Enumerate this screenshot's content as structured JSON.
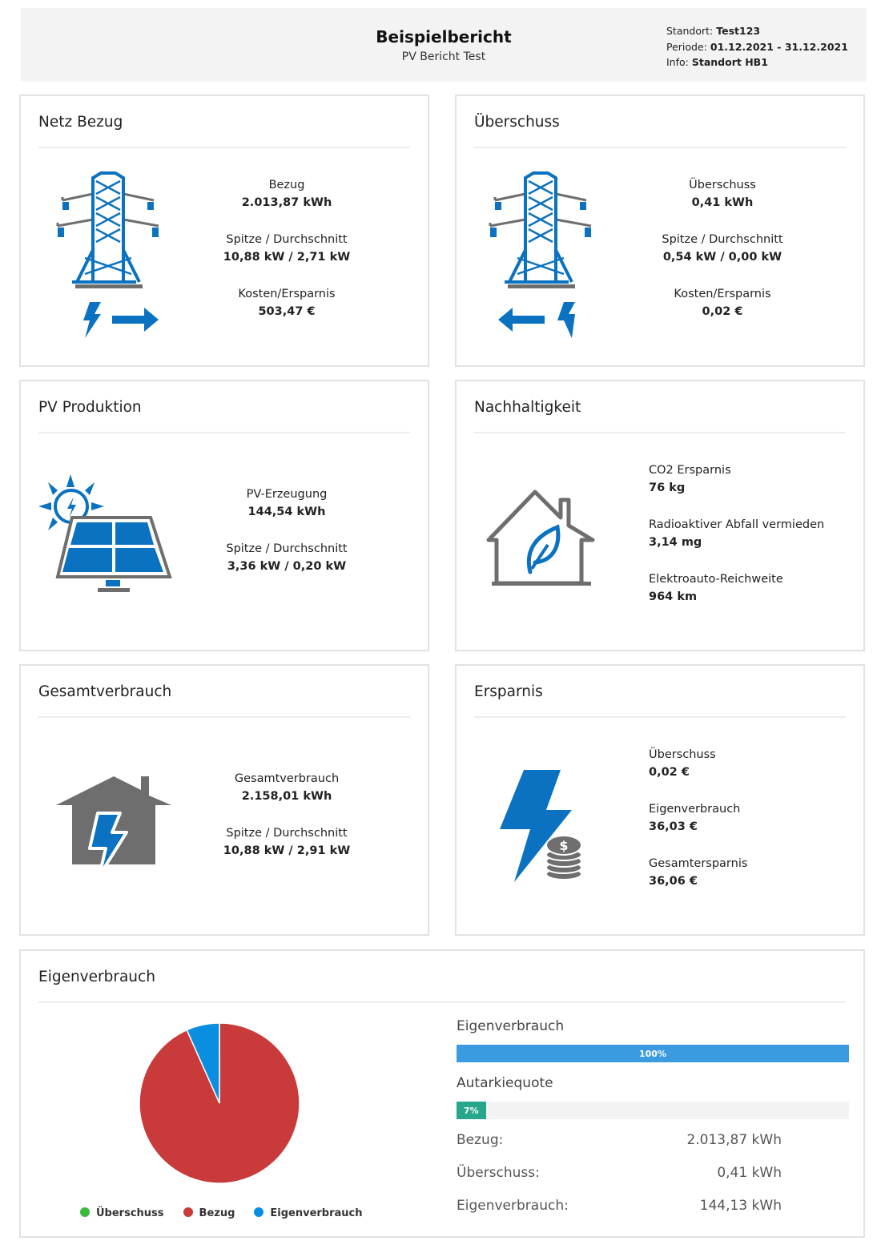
{
  "header": {
    "title": "Beispielbericht",
    "subtitle": "PV Bericht Test",
    "meta": [
      {
        "label": "Standort:",
        "value": "Test123"
      },
      {
        "label": "Periode:",
        "value": "01.12.2021 - 31.12.2021"
      },
      {
        "label": "Info:",
        "value": "Standort HB1"
      }
    ]
  },
  "colors": {
    "blue": "#0a72c0",
    "gray": "#6e6e6e",
    "pie_bezug": "#c93a3a",
    "pie_eigen": "#0a8ee0",
    "pie_ueberschuss": "#3cb93c",
    "bar_blue": "#3a9be0",
    "bar_teal": "#26a68a"
  },
  "cards": {
    "netz": {
      "title": "Netz Bezug",
      "icon": "power-pylon-import-icon",
      "stats": [
        {
          "label": "Bezug",
          "value": "2.013,87 kWh"
        },
        {
          "label": "Spitze / Durchschnitt",
          "value": "10,88 kW / 2,71 kW"
        },
        {
          "label": "Kosten/Ersparnis",
          "value": "503,47 €"
        }
      ]
    },
    "ueberschuss": {
      "title": "Überschuss",
      "icon": "power-pylon-export-icon",
      "stats": [
        {
          "label": "Überschuss",
          "value": "0,41 kWh"
        },
        {
          "label": "Spitze / Durchschnitt",
          "value": "0,54 kW / 0,00 kW"
        },
        {
          "label": "Kosten/Ersparnis",
          "value": "0,02 €"
        }
      ]
    },
    "pv": {
      "title": "PV Produktion",
      "icon": "solar-panel-icon",
      "stats": [
        {
          "label": "PV-Erzeugung",
          "value": "144,54 kWh"
        },
        {
          "label": "Spitze / Durchschnitt",
          "value": "3,36 kW / 0,20 kW"
        }
      ]
    },
    "nachhaltigkeit": {
      "title": "Nachhaltigkeit",
      "icon": "eco-house-icon",
      "stats": [
        {
          "label": "CO2 Ersparnis",
          "value": "76 kg"
        },
        {
          "label": "Radioaktiver Abfall vermieden",
          "value": "3,14 mg"
        },
        {
          "label": "Elektroauto-Reichweite",
          "value": "964 km"
        }
      ]
    },
    "gesamt": {
      "title": "Gesamtverbrauch",
      "icon": "house-lightning-icon",
      "stats": [
        {
          "label": "Gesamtverbrauch",
          "value": "2.158,01 kWh"
        },
        {
          "label": "Spitze / Durchschnitt",
          "value": "10,88 kW / 2,91 kW"
        }
      ]
    },
    "ersparnis": {
      "title": "Ersparnis",
      "icon": "lightning-coins-icon",
      "stats": [
        {
          "label": "Überschuss",
          "value": "0,02 €"
        },
        {
          "label": "Eigenverbrauch",
          "value": "36,03 €"
        },
        {
          "label": "Gesamtersparnis",
          "value": "36,06 €"
        }
      ]
    }
  },
  "eigenverbrauch": {
    "title": "Eigenverbrauch",
    "chart_data": {
      "type": "pie",
      "series": [
        {
          "name": "Überschuss",
          "value": 0.41,
          "color": "#3cb93c"
        },
        {
          "name": "Bezug",
          "value": 2013.87,
          "color": "#c93a3a"
        },
        {
          "name": "Eigenverbrauch",
          "value": 144.13,
          "color": "#0a8ee0"
        }
      ],
      "legend": "bottom"
    },
    "bars": [
      {
        "label": "Eigenverbrauch",
        "percent": 100,
        "text": "100%"
      },
      {
        "label": "Autarkiequote",
        "percent": 7,
        "text": "7%"
      }
    ],
    "rows": [
      {
        "label": "Bezug:",
        "value": "2.013,87 kWh"
      },
      {
        "label": "Überschuss:",
        "value": "0,41 kWh"
      },
      {
        "label": "Eigenverbrauch:",
        "value": "144,13 kWh"
      }
    ]
  }
}
